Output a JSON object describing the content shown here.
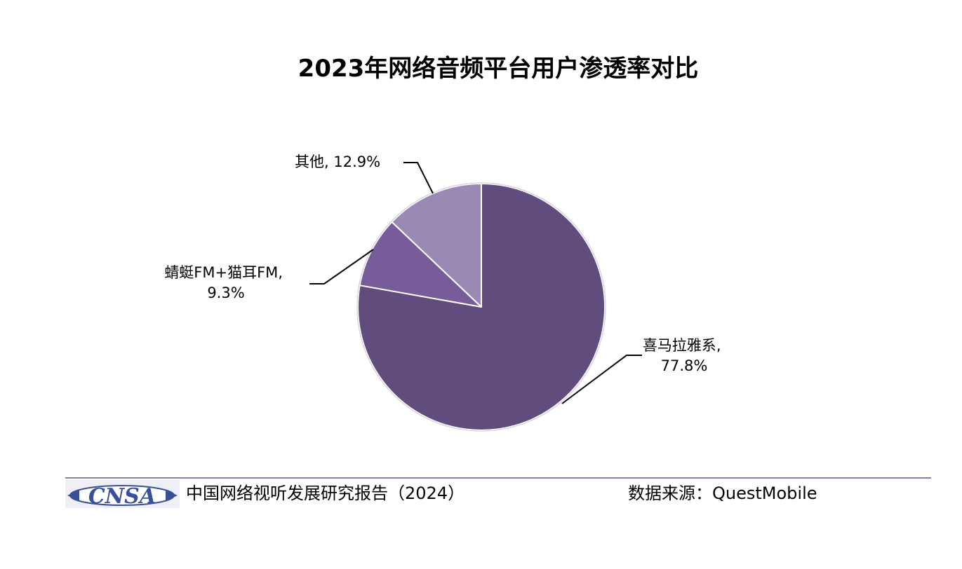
{
  "chart_data": {
    "type": "pie",
    "title": "2023年网络音频平台用户渗透率对比",
    "slices": [
      {
        "label": "喜马拉雅系",
        "value": 77.8,
        "value_label": "77.8%",
        "color": "#614c7e"
      },
      {
        "label": "蜻蜓FM+猫耳FM",
        "value": 9.3,
        "value_label": "9.3%",
        "color": "#775c99"
      },
      {
        "label": "其他",
        "value": 12.9,
        "value_label": "12.9%",
        "color": "#9a89b4"
      }
    ],
    "start": "12 o'clock",
    "direction": "clockwise",
    "legend": "none",
    "slice_border_color": "#ffffff"
  },
  "footer": {
    "logo_text": "CNSA",
    "report_name": "中国网络视听发展研究报告（2024）",
    "source": "数据来源：QuestMobile",
    "line_color": "#8a7fa6",
    "logo_color": "#3a4f9a"
  }
}
